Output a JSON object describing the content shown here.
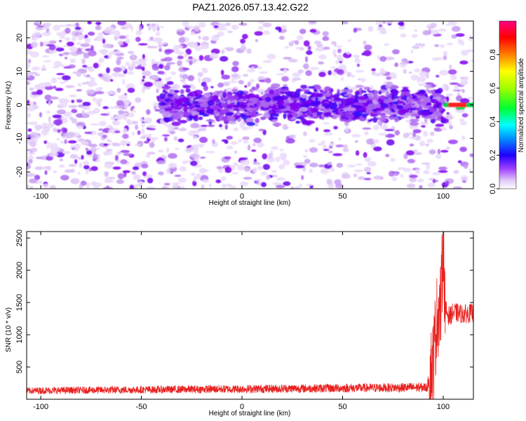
{
  "title": "PAZ1.2026.057.13.42.G22",
  "colors": {
    "snr_line": "#e8201e",
    "spectrogram_low": "#e8c8f8",
    "spectrogram_mid": "#7a00e8",
    "colorbar_stops": [
      "#ffffff",
      "#d4b8f4",
      "#8a00ff",
      "#2a00ff",
      "#00a0ff",
      "#00ffff",
      "#00ff40",
      "#a0ff00",
      "#ffff00",
      "#ff8000",
      "#ff0000",
      "#ff0080"
    ]
  },
  "chart_data": [
    {
      "type": "heatmap",
      "title": "PAZ1.2026.057.13.42.G22",
      "xlabel": "Height of straight line (km)",
      "ylabel": "Frequency (Hz)",
      "xlim": [
        -107,
        115
      ],
      "ylim": [
        -25,
        25
      ],
      "x_ticks": [
        -100,
        -50,
        0,
        50,
        100
      ],
      "y_ticks": [
        -20,
        -10,
        0,
        10,
        20
      ],
      "colorbar": {
        "label": "Normalized spectral amplitude",
        "range": [
          0,
          1
        ],
        "ticks": [
          "0.0",
          "0.2",
          "0.4",
          "0.6",
          "0.8"
        ]
      },
      "description_points": [
        {
          "x": -30,
          "y": 0.5,
          "amplitude": 0.25
        },
        {
          "x": -10,
          "y": -2,
          "amplitude": 0.22
        },
        {
          "x": 17,
          "y": -1.5,
          "amplitude": 0.28
        },
        {
          "x": 97,
          "y": 0,
          "amplitude": 0.3
        },
        {
          "x": 100,
          "y": -5,
          "amplitude": 0.3
        },
        {
          "x": 108,
          "y": 0,
          "amplitude": 0.95
        }
      ]
    },
    {
      "type": "line",
      "xlabel": "Height of straight line (km)",
      "ylabel": "SNR (10 * v/v)",
      "xlim": [
        -107,
        115
      ],
      "ylim": [
        0,
        2600
      ],
      "x_ticks": [
        -100,
        -50,
        0,
        50,
        100
      ],
      "y_ticks": [
        500,
        1000,
        1500,
        2000,
        2500
      ],
      "grid": false,
      "series": [
        {
          "x": [
            -107,
            -100,
            -80,
            -60,
            -40,
            -20,
            0,
            20,
            40,
            60,
            80,
            92,
            95,
            97,
            99,
            100,
            101,
            103,
            105,
            110,
            115
          ],
          "y": [
            130,
            135,
            140,
            145,
            150,
            155,
            160,
            165,
            170,
            175,
            180,
            185,
            600,
            1300,
            1500,
            2550,
            1400,
            1280,
            1350,
            1320,
            1340
          ]
        }
      ]
    }
  ]
}
